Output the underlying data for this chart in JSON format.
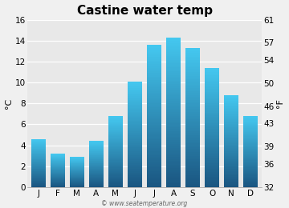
{
  "title": "Castine water temp",
  "months": [
    "J",
    "F",
    "M",
    "A",
    "M",
    "J",
    "J",
    "A",
    "S",
    "O",
    "N",
    "D"
  ],
  "values_c": [
    4.6,
    3.2,
    2.9,
    4.4,
    6.8,
    10.1,
    13.6,
    14.3,
    13.3,
    11.4,
    8.8,
    6.8
  ],
  "ylabel_left": "°C",
  "ylabel_right": "°F",
  "yticks_c": [
    0,
    2,
    4,
    6,
    8,
    10,
    12,
    14,
    16
  ],
  "yticks_f": [
    32,
    36,
    39,
    43,
    46,
    50,
    54,
    57,
    61
  ],
  "ylim_c": [
    0,
    16
  ],
  "bar_color_top": "#44c8f0",
  "bar_color_bottom": "#1a5580",
  "background_color": "#f0f0f0",
  "plot_bg_color": "#e8e8e8",
  "watermark": "© www.seatemperature.org",
  "title_fontsize": 11,
  "tick_fontsize": 7.5,
  "label_fontsize": 8,
  "bar_width": 0.75
}
